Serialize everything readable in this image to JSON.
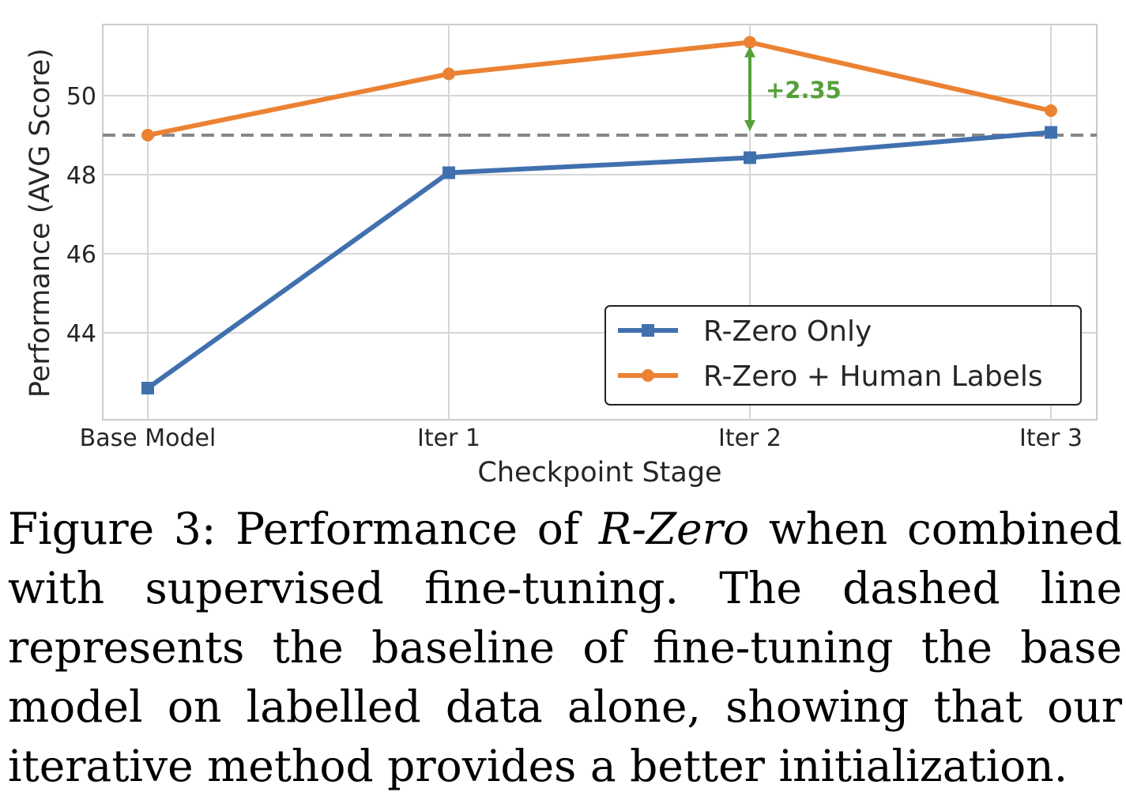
{
  "chart_data": {
    "type": "line",
    "categories": [
      "Base Model",
      "Iter 1",
      "Iter 2",
      "Iter 3"
    ],
    "series": [
      {
        "name": "R-Zero Only",
        "values": [
          42.6,
          48.05,
          48.43,
          49.07
        ],
        "color": "#4170ae",
        "marker": "square"
      },
      {
        "name": "R-Zero + Human Labels",
        "values": [
          49.0,
          50.55,
          51.35,
          49.62
        ],
        "color": "#eb8233",
        "marker": "circle"
      }
    ],
    "baseline": {
      "value": 49.0,
      "style": "dashed",
      "color": "#888888"
    },
    "annotation": {
      "text": "+2.35",
      "category": "Iter 2",
      "from": 49.0,
      "to": 51.35,
      "color": "#55a03a"
    },
    "xlabel": "Checkpoint Stage",
    "ylabel": "Performance (AVG Score)",
    "ylim": [
      41.8,
      51.8
    ],
    "yticks": [
      44,
      46,
      48,
      50
    ],
    "grid": true,
    "legend_position": "lower-right"
  },
  "caption": {
    "label": "Figure 3:",
    "text_before": "Performance of",
    "emphasis": "R-Zero",
    "text_after": "when combined with supervised fine-tuning. The dashed line represents the baseline of fine-tuning the base model on labelled data alone, showing that our iterative method provides a better initialization."
  }
}
